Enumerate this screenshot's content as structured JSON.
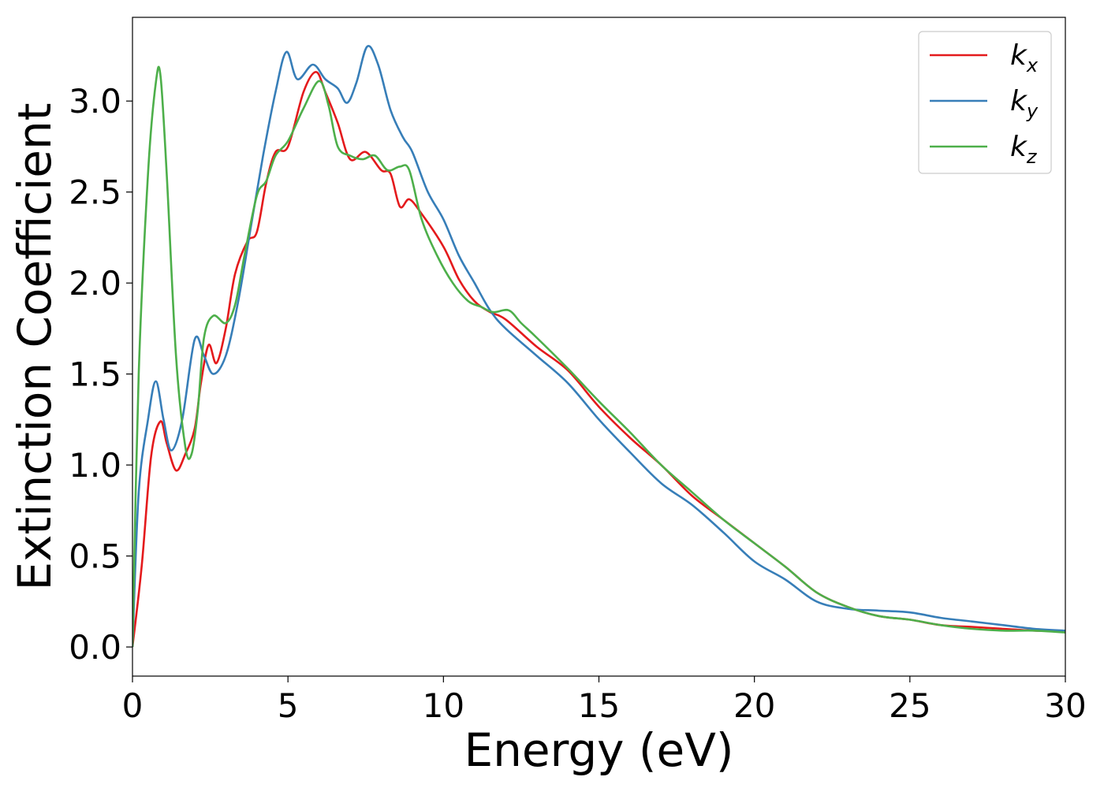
{
  "chart_data": {
    "type": "line",
    "title": "",
    "xlabel": "Energy (eV)",
    "ylabel": "Extinction Coefficient",
    "xlim": [
      0,
      30
    ],
    "ylim": [
      -0.16,
      3.46
    ],
    "xticks": [
      "0",
      "5",
      "10",
      "15",
      "20",
      "25",
      "30"
    ],
    "yticks": [
      "0.0",
      "0.5",
      "1.0",
      "1.5",
      "2.0",
      "2.5",
      "3.0"
    ],
    "grid": false,
    "legend_position": "top-right",
    "series": [
      {
        "name": "k",
        "subscript": "x",
        "color": "#e41a1c",
        "points": [
          [
            0,
            0.0
          ],
          [
            0.3,
            0.45
          ],
          [
            0.6,
            1.05
          ],
          [
            0.9,
            1.24
          ],
          [
            1.1,
            1.12
          ],
          [
            1.4,
            0.97
          ],
          [
            1.7,
            1.06
          ],
          [
            2.0,
            1.2
          ],
          [
            2.2,
            1.45
          ],
          [
            2.45,
            1.66
          ],
          [
            2.7,
            1.56
          ],
          [
            3.0,
            1.75
          ],
          [
            3.3,
            2.05
          ],
          [
            3.7,
            2.23
          ],
          [
            4.0,
            2.28
          ],
          [
            4.3,
            2.55
          ],
          [
            4.6,
            2.72
          ],
          [
            5.0,
            2.75
          ],
          [
            5.5,
            3.05
          ],
          [
            5.9,
            3.16
          ],
          [
            6.2,
            3.05
          ],
          [
            6.6,
            2.88
          ],
          [
            7.0,
            2.68
          ],
          [
            7.5,
            2.72
          ],
          [
            8.0,
            2.62
          ],
          [
            8.3,
            2.6
          ],
          [
            8.6,
            2.42
          ],
          [
            8.9,
            2.46
          ],
          [
            9.3,
            2.38
          ],
          [
            10.0,
            2.2
          ],
          [
            10.5,
            2.02
          ],
          [
            11.0,
            1.9
          ],
          [
            11.5,
            1.84
          ],
          [
            12.0,
            1.8
          ],
          [
            13.0,
            1.65
          ],
          [
            14.0,
            1.52
          ],
          [
            15.0,
            1.32
          ],
          [
            16.0,
            1.15
          ],
          [
            17.0,
            1.0
          ],
          [
            18.0,
            0.83
          ],
          [
            19.0,
            0.7
          ],
          [
            20.0,
            0.57
          ],
          [
            21.0,
            0.44
          ],
          [
            22.0,
            0.3
          ],
          [
            23.0,
            0.22
          ],
          [
            24.0,
            0.17
          ],
          [
            25.0,
            0.15
          ],
          [
            26.0,
            0.12
          ],
          [
            27.0,
            0.11
          ],
          [
            28.0,
            0.1
          ],
          [
            29.0,
            0.09
          ],
          [
            30.0,
            0.09
          ]
        ]
      },
      {
        "name": "k",
        "subscript": "y",
        "color": "#377eb8",
        "points": [
          [
            0,
            0.0
          ],
          [
            0.2,
            0.85
          ],
          [
            0.5,
            1.25
          ],
          [
            0.75,
            1.46
          ],
          [
            1.0,
            1.25
          ],
          [
            1.25,
            1.08
          ],
          [
            1.6,
            1.25
          ],
          [
            2.0,
            1.69
          ],
          [
            2.3,
            1.6
          ],
          [
            2.6,
            1.5
          ],
          [
            3.0,
            1.6
          ],
          [
            3.4,
            1.9
          ],
          [
            3.8,
            2.3
          ],
          [
            4.2,
            2.7
          ],
          [
            4.6,
            3.05
          ],
          [
            4.95,
            3.27
          ],
          [
            5.3,
            3.12
          ],
          [
            5.8,
            3.2
          ],
          [
            6.2,
            3.12
          ],
          [
            6.6,
            3.07
          ],
          [
            6.9,
            2.99
          ],
          [
            7.2,
            3.1
          ],
          [
            7.55,
            3.3
          ],
          [
            7.9,
            3.2
          ],
          [
            8.3,
            2.95
          ],
          [
            8.7,
            2.8
          ],
          [
            9.0,
            2.72
          ],
          [
            9.5,
            2.5
          ],
          [
            10.0,
            2.35
          ],
          [
            10.5,
            2.15
          ],
          [
            11.0,
            2.0
          ],
          [
            11.5,
            1.85
          ],
          [
            12.0,
            1.75
          ],
          [
            13.0,
            1.6
          ],
          [
            14.0,
            1.45
          ],
          [
            15.0,
            1.25
          ],
          [
            16.0,
            1.07
          ],
          [
            17.0,
            0.9
          ],
          [
            18.0,
            0.78
          ],
          [
            19.0,
            0.63
          ],
          [
            20.0,
            0.47
          ],
          [
            21.0,
            0.37
          ],
          [
            22.0,
            0.25
          ],
          [
            23.0,
            0.21
          ],
          [
            24.0,
            0.2
          ],
          [
            25.0,
            0.19
          ],
          [
            26.0,
            0.16
          ],
          [
            27.0,
            0.14
          ],
          [
            28.0,
            0.12
          ],
          [
            29.0,
            0.1
          ],
          [
            30.0,
            0.09
          ]
        ]
      },
      {
        "name": "k",
        "subscript": "z",
        "color": "#4daf4a",
        "points": [
          [
            0,
            0.0
          ],
          [
            0.2,
            1.5
          ],
          [
            0.5,
            2.6
          ],
          [
            0.75,
            3.1
          ],
          [
            0.9,
            3.14
          ],
          [
            1.1,
            2.6
          ],
          [
            1.4,
            1.6
          ],
          [
            1.7,
            1.1
          ],
          [
            1.9,
            1.06
          ],
          [
            2.1,
            1.3
          ],
          [
            2.3,
            1.7
          ],
          [
            2.6,
            1.82
          ],
          [
            3.0,
            1.78
          ],
          [
            3.3,
            1.88
          ],
          [
            3.6,
            2.15
          ],
          [
            4.0,
            2.48
          ],
          [
            4.3,
            2.56
          ],
          [
            4.6,
            2.7
          ],
          [
            5.0,
            2.78
          ],
          [
            5.5,
            2.96
          ],
          [
            6.0,
            3.11
          ],
          [
            6.3,
            2.98
          ],
          [
            6.6,
            2.75
          ],
          [
            7.0,
            2.7
          ],
          [
            7.4,
            2.68
          ],
          [
            7.8,
            2.7
          ],
          [
            8.2,
            2.62
          ],
          [
            8.6,
            2.64
          ],
          [
            8.9,
            2.62
          ],
          [
            9.3,
            2.35
          ],
          [
            9.8,
            2.15
          ],
          [
            10.3,
            2.0
          ],
          [
            10.8,
            1.9
          ],
          [
            11.2,
            1.87
          ],
          [
            11.6,
            1.84
          ],
          [
            12.1,
            1.85
          ],
          [
            12.5,
            1.78
          ],
          [
            13.0,
            1.7
          ],
          [
            14.0,
            1.53
          ],
          [
            15.0,
            1.35
          ],
          [
            16.0,
            1.18
          ],
          [
            17.0,
            1.0
          ],
          [
            18.0,
            0.85
          ],
          [
            19.0,
            0.7
          ],
          [
            20.0,
            0.57
          ],
          [
            21.0,
            0.44
          ],
          [
            22.0,
            0.3
          ],
          [
            23.0,
            0.22
          ],
          [
            24.0,
            0.17
          ],
          [
            25.0,
            0.15
          ],
          [
            26.0,
            0.12
          ],
          [
            27.0,
            0.1
          ],
          [
            28.0,
            0.09
          ],
          [
            29.0,
            0.09
          ],
          [
            30.0,
            0.08
          ]
        ]
      }
    ]
  }
}
